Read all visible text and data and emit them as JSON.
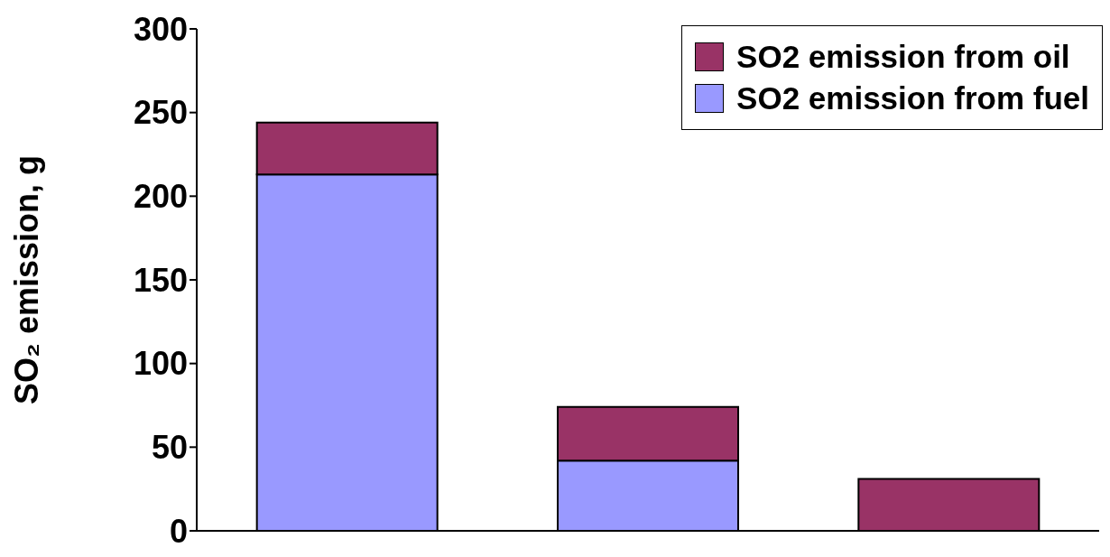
{
  "chart_data": {
    "type": "bar",
    "stacked": true,
    "ylabel": "SO₂ emission, g",
    "categories": [
      null,
      null,
      null
    ],
    "series": [
      {
        "name": "SO2 emission from fuel",
        "color": "#9999ff",
        "values": [
          213,
          42,
          0
        ]
      },
      {
        "name": "SO2 emission from oil",
        "color": "#993366",
        "values": [
          31,
          32,
          31
        ]
      }
    ],
    "ylim": [
      0,
      300
    ],
    "yticks": [
      0,
      50,
      100,
      150,
      200,
      250,
      300
    ],
    "grid": false,
    "legend": "top right"
  }
}
